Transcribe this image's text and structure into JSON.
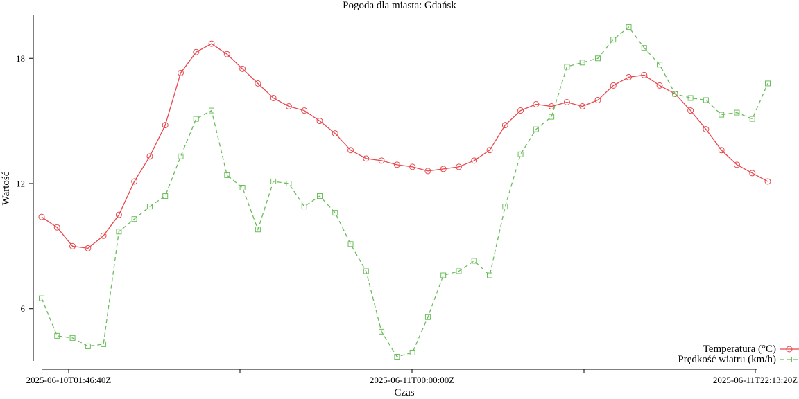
{
  "chart_data": {
    "type": "line",
    "title": "Pogoda dla miasta: Gdańsk",
    "xlabel": "Czas",
    "ylabel": "Wartość",
    "ylim": [
      3.5,
      20.1
    ],
    "yticks": [
      6,
      12,
      18
    ],
    "xticks": [
      "2025-06-10T01:46:40Z",
      "2025-06-11T00:00:00Z",
      "2025-06-11T22:13:20Z"
    ],
    "grid": false,
    "legend_position": "bottom-right",
    "series": [
      {
        "name": "Temperatura (°C)",
        "color": "#e8474c",
        "marker": "circle",
        "dash": "solid",
        "values": [
          10.4,
          9.9,
          9.0,
          8.9,
          9.5,
          10.5,
          12.1,
          13.3,
          14.8,
          17.3,
          18.3,
          18.7,
          18.2,
          17.5,
          16.8,
          16.1,
          15.7,
          15.5,
          15.0,
          14.4,
          13.6,
          13.2,
          13.1,
          12.9,
          12.8,
          12.6,
          12.7,
          12.8,
          13.1,
          13.6,
          14.8,
          15.5,
          15.8,
          15.7,
          15.9,
          15.7,
          16.0,
          16.7,
          17.1,
          17.2,
          16.7,
          16.3,
          15.5,
          14.6,
          13.6,
          12.9,
          12.5,
          12.1
        ]
      },
      {
        "name": "Prędkość wiatru (km/h)",
        "color": "#6abd5a",
        "marker": "square",
        "dash": "dashed",
        "values": [
          6.5,
          4.7,
          4.6,
          4.2,
          4.3,
          9.7,
          10.3,
          10.9,
          11.4,
          13.3,
          15.1,
          15.5,
          12.4,
          11.8,
          9.8,
          12.1,
          12.0,
          10.9,
          11.4,
          10.6,
          9.1,
          7.8,
          4.9,
          3.7,
          3.9,
          5.6,
          7.6,
          7.8,
          8.3,
          7.6,
          10.9,
          13.4,
          14.6,
          15.2,
          17.6,
          17.8,
          18.0,
          18.9,
          19.5,
          18.5,
          17.7,
          16.3,
          16.1,
          16.0,
          15.3,
          15.4,
          15.1,
          16.8
        ]
      }
    ]
  }
}
